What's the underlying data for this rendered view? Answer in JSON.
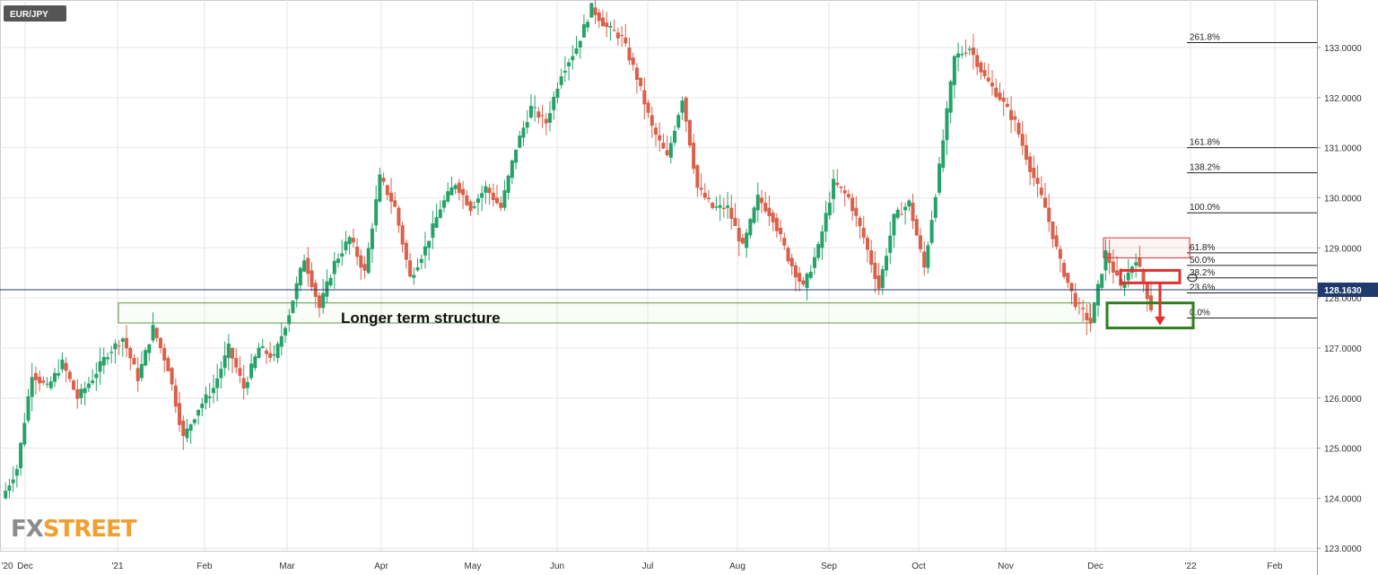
{
  "symbol": "EUR/JPY",
  "logo": {
    "part1": "FX",
    "part2": "STREET"
  },
  "colors": {
    "up": "#26a269",
    "down": "#d9604a",
    "grid": "#e6e6e6",
    "structure": "#5a9a3a",
    "target": "#2e7d1e",
    "resistance": "#e03030",
    "price_line": "#1f3a6b",
    "price_badge": "#1f3a6b",
    "symbol_badge": "#555555",
    "logo1": "#8c8c8c",
    "logo2": "#f0a030"
  },
  "chart_data": {
    "type": "candlestick",
    "symbol": "EUR/JPY",
    "ylim": [
      122.95,
      133.95
    ],
    "y_ticks": [
      "133.0000",
      "132.0000",
      "131.0000",
      "130.0000",
      "129.0000",
      "128.0000",
      "127.0000",
      "126.0000",
      "125.0000",
      "124.0000",
      "123.0000"
    ],
    "y_tick_values": [
      133,
      132,
      131,
      130,
      129,
      128,
      127,
      126,
      125,
      124,
      123
    ],
    "x_ticks": [
      "'20",
      "Dec",
      "'21",
      "Feb",
      "Mar",
      "Apr",
      "May",
      "Jun",
      "Jul",
      "Aug",
      "Sep",
      "Oct",
      "Nov",
      "Dec",
      "'22",
      "Feb"
    ],
    "current_price": "128.1630",
    "current_price_value": 128.163,
    "fibonacci": [
      {
        "label": "261.8%",
        "value": 133.1
      },
      {
        "label": "161.8%",
        "value": 131.0
      },
      {
        "label": "138.2%",
        "value": 130.5
      },
      {
        "label": "100.0%",
        "value": 129.7
      },
      {
        "label": "61.8%",
        "value": 128.9
      },
      {
        "label": "50.0%",
        "value": 128.65
      },
      {
        "label": "38.2%",
        "value": 128.4
      },
      {
        "label": "23.6%",
        "value": 128.1
      },
      {
        "label": "0.0%",
        "value": 127.6
      }
    ],
    "annotations": [
      {
        "label": "Longer term structure",
        "y_low": 127.5,
        "y_high": 127.9
      }
    ],
    "price_path": [
      124.0,
      124.6,
      126.5,
      126.2,
      126.7,
      126.0,
      126.4,
      126.9,
      127.2,
      126.4,
      127.4,
      126.6,
      125.2,
      125.8,
      126.2,
      127.0,
      126.2,
      127.0,
      126.8,
      127.7,
      128.8,
      127.8,
      128.7,
      129.2,
      128.5,
      130.4,
      129.8,
      128.4,
      129.0,
      129.8,
      130.3,
      129.8,
      130.2,
      129.8,
      131.0,
      131.8,
      131.5,
      132.5,
      133.0,
      133.8,
      133.4,
      133.2,
      132.4,
      131.4,
      130.8,
      132.0,
      130.2,
      129.8,
      129.8,
      129.0,
      130.0,
      129.6,
      128.8,
      128.2,
      129.0,
      130.3,
      130.0,
      129.2,
      128.2,
      129.6,
      129.9,
      128.6,
      130.6,
      132.8,
      133.0,
      132.4,
      132.0,
      131.5,
      130.6,
      129.8,
      128.7,
      127.9,
      127.5,
      128.9,
      128.2,
      128.8,
      127.8
    ]
  }
}
